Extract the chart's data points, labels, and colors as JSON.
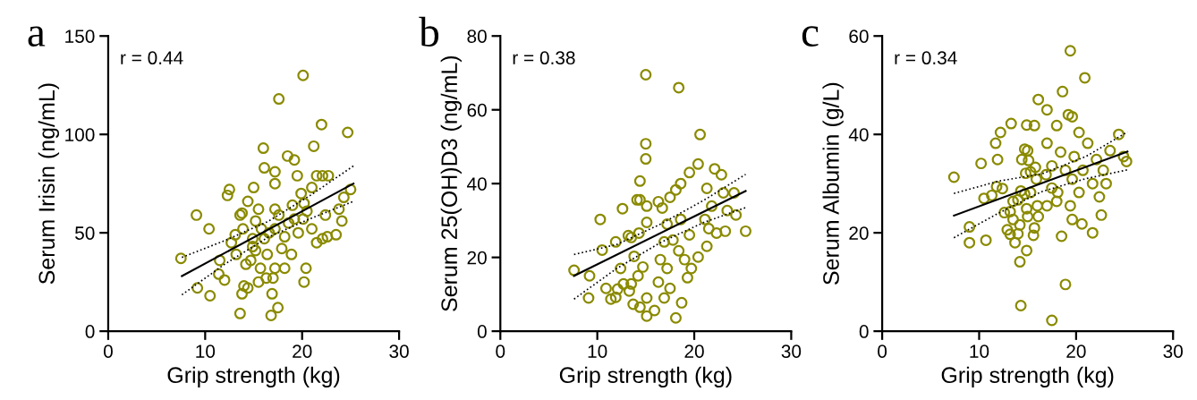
{
  "chart_data": [
    {
      "type": "scatter",
      "title": "a",
      "xlabel": "Grip strength (kg)",
      "ylabel": "Serum Irisin (ng/mL)",
      "annotations": [
        "r = 0.44"
      ],
      "xlim": [
        0,
        30
      ],
      "xticks": [
        0,
        10,
        20,
        30
      ],
      "ylim": [
        0,
        150
      ],
      "yticks": [
        0,
        50,
        100,
        150
      ],
      "grid": false,
      "legend": false,
      "series": [
        {
          "type": "scatter",
          "marker": "circle",
          "color": "#8a8a00",
          "x": [
            7.5,
            9.1,
            9.2,
            10.5,
            10.4,
            11.4,
            11.5,
            12,
            12.3,
            12.5,
            12.7,
            13.1,
            13.6,
            13.8,
            13.6,
            13.8,
            14,
            14.4,
            14.2,
            14.7,
            14.4,
            15,
            15.5,
            15.2,
            15.7,
            16.1,
            16,
            16.1,
            16.4,
            16.8,
            16.9,
            17,
            17.2,
            17.5,
            17.6,
            17.2,
            17.2,
            17.2,
            17.2,
            17.6,
            18.5,
            19.2,
            20.1,
            19.5,
            19.9,
            20.2,
            20.5,
            20.4,
            20.2,
            21,
            21.2,
            21.5,
            22,
            22.1,
            22.7,
            22.4,
            22.1,
            22.6,
            23.5,
            24.1,
            24.3,
            24.7,
            25,
            23.8,
            14.9,
            15.2,
            15.8,
            16.6,
            18.2,
            18.6,
            19.2,
            19.6,
            18.9,
            18.2,
            17.9,
            16.3,
            15.5,
            14.9,
            13.9,
            13.2,
            19,
            20.1,
            21,
            21.5
          ],
          "values": [
            37,
            59,
            22,
            18,
            52,
            29,
            36,
            26,
            69,
            72,
            45,
            49,
            59,
            60,
            9,
            19,
            23,
            22,
            34,
            36,
            66,
            73,
            62,
            41,
            32,
            47,
            93,
            83,
            39,
            8,
            19,
            27,
            32,
            12,
            118,
            81,
            75,
            62,
            52,
            59,
            89,
            87,
            130,
            79,
            70,
            65,
            61,
            32,
            25,
            73,
            94,
            79,
            105,
            79,
            79,
            59,
            47,
            48,
            49,
            56,
            68,
            101,
            72,
            62,
            47,
            56,
            52,
            50,
            48,
            55,
            57,
            50,
            39,
            32,
            42,
            27,
            25,
            43,
            52,
            39,
            64,
            57,
            52,
            45
          ]
        },
        {
          "type": "line",
          "line_style": "solid",
          "marker": "none",
          "color": "#000000",
          "x": [
            7.6,
            25.3
          ],
          "values": [
            28,
            75
          ]
        },
        {
          "type": "line",
          "line_style": "dotted",
          "marker": "none",
          "color": "#000000",
          "x": [
            7.6,
            12,
            16.5,
            21,
            25.3
          ],
          "values": [
            37.5,
            46,
            55.8,
            69.5,
            84
          ]
        },
        {
          "type": "line",
          "line_style": "dotted",
          "marker": "none",
          "color": "#000000",
          "x": [
            7.6,
            12,
            16.5,
            21,
            25.3
          ],
          "values": [
            18.5,
            34,
            47.8,
            57.5,
            66
          ]
        }
      ]
    },
    {
      "type": "scatter",
      "title": "b",
      "xlabel": "Grip strength (kg)",
      "ylabel": "Serum 25(OH)D3 (ng/mL)",
      "annotations": [
        "r = 0.38"
      ],
      "xlim": [
        0,
        30
      ],
      "xticks": [
        0,
        10,
        20,
        30
      ],
      "ylim": [
        0,
        80
      ],
      "yticks": [
        0,
        20,
        40,
        60,
        80
      ],
      "grid": false,
      "legend": false,
      "series": [
        {
          "type": "scatter",
          "marker": "circle",
          "color": "#8a8a00",
          "x": [
            15,
            15,
            15,
            14.4,
            14.1,
            14.4,
            12.6,
            10.3,
            15.1,
            15.1,
            13.2,
            13.5,
            14.3,
            11.9,
            10.5,
            13.8,
            14.7,
            12.4,
            7.6,
            9.2,
            14.2,
            13.5,
            12.7,
            10.9,
            13.3,
            12.1,
            9.1,
            11.4,
            11.9,
            13.7,
            14.4,
            15.1,
            15.1,
            15.9,
            16.9,
            17.5,
            16.3,
            17.2,
            16.5,
            16.9,
            17.2,
            16.7,
            17.5,
            16.3,
            18.1,
            18.6,
            19.5,
            18.6,
            19.5,
            19,
            19.7,
            19.3,
            18.7,
            18.1,
            18.4,
            20.4,
            20.6,
            21.3,
            21.8,
            21.1,
            21.5,
            22.1,
            22.8,
            23,
            23.4,
            24.1,
            24.3,
            23.2,
            25.3,
            22.3,
            21.3,
            20.4,
            17.8,
            18.4
          ],
          "values": [
            69.5,
            50.8,
            46.7,
            40.7,
            35.6,
            35.6,
            33.2,
            30.3,
            33.9,
            29.5,
            25.9,
            25.4,
            26.6,
            24.2,
            22,
            20.3,
            17.4,
            17,
            16.5,
            15,
            15,
            12.8,
            12.8,
            11.6,
            10.9,
            11.4,
            9,
            8.7,
            9.2,
            7.3,
            6.5,
            9,
            4.1,
            5.6,
            9,
            11.6,
            13.3,
            17,
            19.4,
            24.2,
            29,
            33.4,
            36.3,
            35.1,
            38.3,
            40,
            43,
            30.3,
            26.1,
            19.4,
            17,
            14.5,
            7.7,
            3.6,
            66,
            45.3,
            53.3,
            38.7,
            33.9,
            30.3,
            27.8,
            44,
            42.4,
            37.5,
            32.7,
            37.5,
            31.5,
            27.1,
            27.1,
            26.6,
            23,
            20.1,
            24.7,
            21.8
          ]
        },
        {
          "type": "line",
          "line_style": "solid",
          "marker": "none",
          "color": "#000000",
          "x": [
            7.6,
            25.3
          ],
          "values": [
            15,
            38
          ]
        },
        {
          "type": "line",
          "line_style": "dotted",
          "marker": "none",
          "color": "#000000",
          "x": [
            7.6,
            12,
            16.5,
            21,
            25.3
          ],
          "values": [
            20.8,
            23.5,
            29,
            35.5,
            42.5
          ]
        },
        {
          "type": "line",
          "line_style": "dotted",
          "marker": "none",
          "color": "#000000",
          "x": [
            7.6,
            12,
            16.5,
            21,
            25.3
          ],
          "values": [
            8.7,
            17,
            24,
            29.5,
            33.5
          ]
        }
      ]
    },
    {
      "type": "scatter",
      "title": "c",
      "xlabel": "Grip strength (kg)",
      "ylabel": "Serum Albumin (g/L)",
      "annotations": [
        "r = 0.34"
      ],
      "xlim": [
        0,
        30
      ],
      "xticks": [
        0,
        10,
        20,
        30
      ],
      "ylim": [
        0,
        60
      ],
      "yticks": [
        0,
        20,
        40,
        60
      ],
      "grid": false,
      "legend": false,
      "series": [
        {
          "type": "scatter",
          "marker": "circle",
          "color": "#8a8a00",
          "x": [
            7.4,
            10.2,
            9,
            9,
            10.7,
            10.5,
            11.3,
            11.8,
            12.4,
            11.9,
            11.7,
            12.2,
            13.3,
            14.9,
            15.7,
            16.1,
            14.7,
            15,
            14.4,
            15.1,
            15.8,
            14.8,
            15.3,
            15.9,
            14.3,
            14.7,
            15.3,
            13.5,
            14,
            12.6,
            13.2,
            13.5,
            14.2,
            12.9,
            13.2,
            14,
            13.7,
            14.9,
            15,
            16,
            16.1,
            15.7,
            15.6,
            14.9,
            14.2,
            14.3,
            17.5,
            18.9,
            18.5,
            19.4,
            20.9,
            18.6,
            19.6,
            19.2,
            17,
            18,
            20.3,
            17,
            18.4,
            19.8,
            21.2,
            17.5,
            18.9,
            20.7,
            22.1,
            22.8,
            23.5,
            24.4,
            24.9,
            25.2,
            21.7,
            23.1,
            22.4,
            19.6,
            20.3,
            19.4,
            17.5,
            18,
            18.1,
            20.6,
            19.6,
            21.7,
            22.6,
            17,
            16.9
          ],
          "values": [
            31.3,
            34.1,
            21.2,
            18,
            18.5,
            27,
            27.6,
            29.4,
            29,
            34.9,
            38.2,
            40.4,
            42.2,
            41.9,
            41.8,
            47.1,
            37,
            36.7,
            34.9,
            34.7,
            33.3,
            32.1,
            32.4,
            30.9,
            28.5,
            27.9,
            28.2,
            26.4,
            26.7,
            24.1,
            24.3,
            22.7,
            21.6,
            20.6,
            19.7,
            19.8,
            18,
            24.9,
            23.3,
            25.5,
            23.3,
            21,
            19.5,
            16.4,
            14.1,
            5.2,
            2.2,
            9.5,
            19.3,
            57,
            51.5,
            48.7,
            43.6,
            44,
            45,
            41.8,
            40.4,
            38.2,
            36.4,
            35.5,
            38.2,
            33.6,
            32.7,
            32.7,
            34.9,
            32.7,
            36.7,
            40,
            35.5,
            34.5,
            30,
            30,
            27.3,
            30.9,
            28.2,
            25.5,
            29.1,
            26.4,
            28.2,
            21.8,
            22.7,
            20,
            23.6,
            25.5,
            31.8
          ]
        },
        {
          "type": "line",
          "line_style": "solid",
          "marker": "none",
          "color": "#000000",
          "x": [
            7.4,
            25.3
          ],
          "values": [
            23.5,
            36.5
          ]
        },
        {
          "type": "line",
          "line_style": "dotted",
          "marker": "none",
          "color": "#000000",
          "x": [
            7.4,
            12,
            16.5,
            21,
            25.3
          ],
          "values": [
            28,
            30.5,
            32,
            35.5,
            40.5
          ]
        },
        {
          "type": "line",
          "line_style": "dotted",
          "marker": "none",
          "color": "#000000",
          "x": [
            7.4,
            12,
            16.5,
            21,
            25.3
          ],
          "values": [
            19,
            24,
            28.4,
            31,
            32.8
          ]
        }
      ]
    }
  ]
}
